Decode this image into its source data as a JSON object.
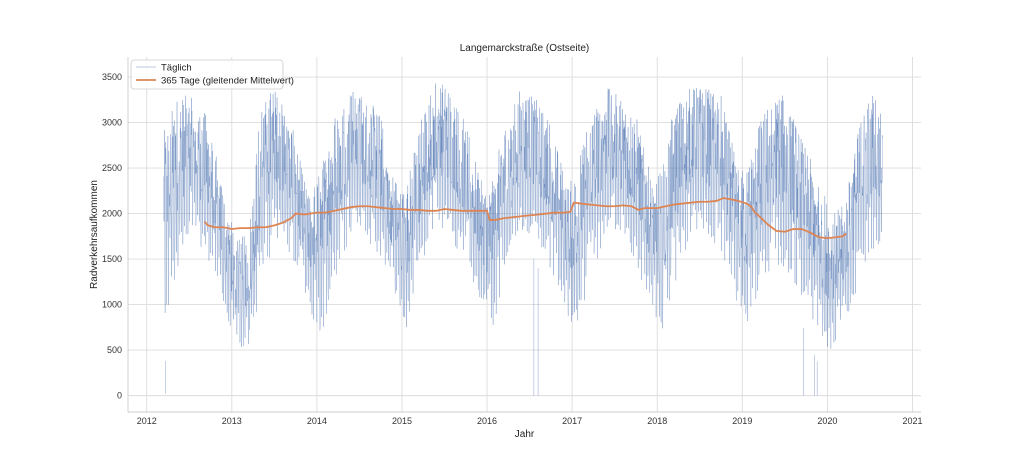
{
  "chart_data": {
    "type": "line",
    "title": "Langemarckstraße (Ostseite)",
    "xlabel": "Jahr",
    "ylabel": "Radverkehrsaufkommen",
    "xlim": [
      2011.78,
      2021.1
    ],
    "ylim": [
      -180,
      3720
    ],
    "x_ticks": [
      2012,
      2013,
      2014,
      2015,
      2016,
      2017,
      2018,
      2019,
      2020,
      2021
    ],
    "x_tick_labels": [
      "2012",
      "2013",
      "2014",
      "2015",
      "2016",
      "2017",
      "2018",
      "2019",
      "2020",
      "2021"
    ],
    "y_ticks": [
      0,
      500,
      1000,
      1500,
      2000,
      2500,
      3000,
      3500
    ],
    "y_tick_labels": [
      "0",
      "500",
      "1000",
      "1500",
      "2000",
      "2500",
      "3000",
      "3500"
    ],
    "grid": true,
    "legend_position": "top-left",
    "series": [
      {
        "name": "Täglich",
        "color": "#4c72b0",
        "kind": "daily",
        "x_range": [
          2012.2,
          2020.65
        ],
        "seasonal_envelope": {
          "x": [
            2012.2,
            2012.35,
            2012.5,
            2012.7,
            2012.9,
            2013.05,
            2013.2,
            2013.35,
            2013.5,
            2013.7,
            2013.9,
            2014.05,
            2014.2,
            2014.4,
            2014.55,
            2014.75,
            2014.95,
            2015.05,
            2015.2,
            2015.4,
            2015.55,
            2015.75,
            2015.95,
            2016.05,
            2016.2,
            2016.4,
            2016.55,
            2016.75,
            2016.95,
            2017.05,
            2017.2,
            2017.4,
            2017.55,
            2017.75,
            2017.95,
            2018.05,
            2018.2,
            2018.4,
            2018.55,
            2018.75,
            2018.95,
            2019.05,
            2019.2,
            2019.4,
            2019.55,
            2019.75,
            2019.95,
            2020.05,
            2020.2,
            2020.4,
            2020.55,
            2020.65
          ],
          "high": [
            2900,
            3300,
            3300,
            3100,
            2300,
            1700,
            1800,
            3300,
            3400,
            3000,
            2200,
            2500,
            3100,
            3400,
            3300,
            3100,
            2300,
            2300,
            3000,
            3500,
            3400,
            3000,
            2300,
            2300,
            3000,
            3400,
            3300,
            3000,
            2300,
            2500,
            3100,
            3400,
            3300,
            3100,
            2300,
            2500,
            3200,
            3400,
            3400,
            3300,
            2500,
            2500,
            3000,
            3400,
            3200,
            2700,
            2300,
            2000,
            2100,
            3100,
            3400,
            3000
          ],
          "low": [
            300,
            900,
            1500,
            1200,
            700,
            300,
            300,
            700,
            1500,
            1200,
            700,
            300,
            900,
            1500,
            1500,
            1100,
            800,
            400,
            900,
            1600,
            1500,
            1100,
            700,
            400,
            900,
            1500,
            1500,
            1100,
            600,
            400,
            900,
            1500,
            1500,
            1100,
            700,
            300,
            800,
            1500,
            1500,
            1200,
            700,
            400,
            800,
            1100,
            1000,
            700,
            200,
            200,
            500,
            1000,
            1300,
            1400
          ]
        },
        "notable_lows": [
          {
            "x": 2012.22,
            "y": 20
          },
          {
            "x": 2016.55,
            "y": 0
          },
          {
            "x": 2016.6,
            "y": 0
          },
          {
            "x": 2019.72,
            "y": 0
          },
          {
            "x": 2019.85,
            "y": 0
          },
          {
            "x": 2019.88,
            "y": 0
          }
        ]
      },
      {
        "name": "365 Tage (gleitender Mittelwert)",
        "color": "#dd8452",
        "kind": "rolling_mean",
        "x": [
          2012.68,
          2012.72,
          2012.8,
          2012.9,
          2013.0,
          2013.1,
          2013.2,
          2013.3,
          2013.4,
          2013.5,
          2013.6,
          2013.7,
          2013.75,
          2013.85,
          2014.0,
          2014.1,
          2014.2,
          2014.3,
          2014.4,
          2014.5,
          2014.6,
          2014.7,
          2014.8,
          2014.9,
          2015.0,
          2015.1,
          2015.2,
          2015.3,
          2015.4,
          2015.5,
          2015.6,
          2015.7,
          2015.8,
          2015.9,
          2016.0,
          2016.03,
          2016.1,
          2016.2,
          2016.3,
          2016.4,
          2016.5,
          2016.6,
          2016.7,
          2016.8,
          2016.9,
          2016.98,
          2017.02,
          2017.1,
          2017.2,
          2017.3,
          2017.4,
          2017.5,
          2017.6,
          2017.7,
          2017.78,
          2017.85,
          2018.0,
          2018.1,
          2018.2,
          2018.3,
          2018.4,
          2018.5,
          2018.6,
          2018.7,
          2018.78,
          2018.85,
          2018.95,
          2019.05,
          2019.1,
          2019.15,
          2019.2,
          2019.3,
          2019.4,
          2019.5,
          2019.6,
          2019.7,
          2019.8,
          2019.9,
          2020.0,
          2020.1,
          2020.18,
          2020.22
        ],
        "y": [
          1910,
          1870,
          1850,
          1850,
          1830,
          1840,
          1840,
          1850,
          1850,
          1870,
          1900,
          1950,
          2000,
          1990,
          2010,
          2010,
          2030,
          2050,
          2070,
          2080,
          2080,
          2070,
          2060,
          2050,
          2050,
          2040,
          2040,
          2030,
          2030,
          2050,
          2040,
          2030,
          2030,
          2030,
          2030,
          1930,
          1930,
          1950,
          1960,
          1970,
          1980,
          1990,
          2000,
          2010,
          2010,
          2020,
          2120,
          2110,
          2100,
          2090,
          2080,
          2080,
          2090,
          2080,
          2040,
          2060,
          2060,
          2080,
          2100,
          2110,
          2120,
          2130,
          2130,
          2140,
          2170,
          2160,
          2140,
          2110,
          2080,
          2010,
          1970,
          1880,
          1810,
          1800,
          1830,
          1830,
          1790,
          1740,
          1730,
          1740,
          1750,
          1780
        ]
      }
    ]
  }
}
